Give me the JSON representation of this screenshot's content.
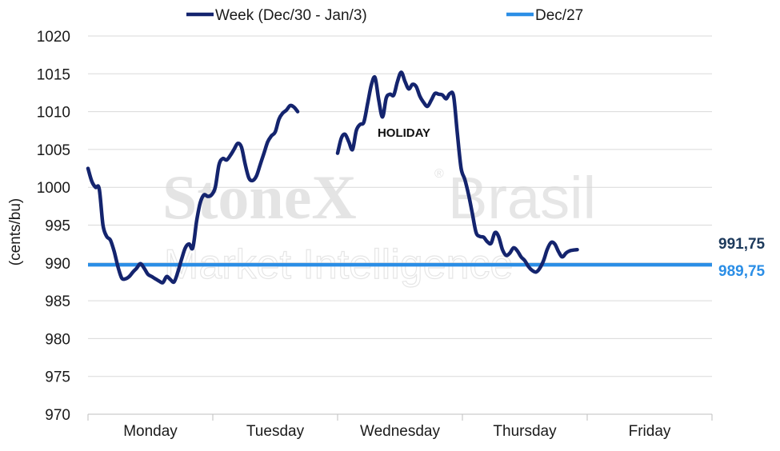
{
  "chart_data": {
    "type": "line",
    "ylabel": "(cents/bu)",
    "ylim": [
      970,
      1020
    ],
    "yticks": [
      970,
      975,
      980,
      985,
      990,
      995,
      1000,
      1005,
      1010,
      1015,
      1020
    ],
    "categories": [
      "Monday",
      "Tuesday",
      "Wednesday",
      "Thursday",
      "Friday"
    ],
    "annotation": "HOLIDAY",
    "watermark": [
      "StoneX",
      "®",
      "Brasil",
      "Market Intelligence"
    ],
    "legend_position": "top",
    "series": [
      {
        "name": "Week (Dec/30 - Jan/3)",
        "color": "#14246e",
        "end_label": "991,75",
        "end_label_color": "#1d3a5c",
        "segments": [
          [
            [
              0.0,
              1002.5
            ],
            [
              0.03,
              1000.8
            ],
            [
              0.06,
              1000.0
            ],
            [
              0.09,
              999.8
            ],
            [
              0.12,
              995.0
            ],
            [
              0.15,
              993.5
            ],
            [
              0.18,
              993.0
            ],
            [
              0.21,
              991.5
            ],
            [
              0.24,
              989.5
            ],
            [
              0.27,
              988.0
            ],
            [
              0.3,
              987.9
            ],
            [
              0.33,
              988.2
            ],
            [
              0.36,
              988.8
            ],
            [
              0.39,
              989.3
            ],
            [
              0.42,
              989.9
            ],
            [
              0.45,
              989.3
            ],
            [
              0.48,
              988.5
            ],
            [
              0.51,
              988.2
            ],
            [
              0.54,
              987.9
            ],
            [
              0.57,
              987.6
            ],
            [
              0.6,
              987.4
            ],
            [
              0.63,
              988.2
            ],
            [
              0.66,
              987.8
            ],
            [
              0.69,
              987.5
            ],
            [
              0.72,
              988.8
            ],
            [
              0.75,
              990.5
            ],
            [
              0.78,
              992.0
            ],
            [
              0.81,
              992.5
            ],
            [
              0.84,
              992.0
            ],
            [
              0.87,
              995.5
            ],
            [
              0.9,
              998.0
            ],
            [
              0.93,
              999.0
            ],
            [
              0.96,
              998.8
            ],
            [
              0.99,
              999.0
            ],
            [
              1.02,
              1000.0
            ],
            [
              1.05,
              1003.0
            ],
            [
              1.08,
              1003.8
            ],
            [
              1.11,
              1003.6
            ],
            [
              1.14,
              1004.2
            ],
            [
              1.17,
              1005.0
            ],
            [
              1.2,
              1005.8
            ],
            [
              1.23,
              1005.3
            ],
            [
              1.26,
              1003.0
            ],
            [
              1.29,
              1001.2
            ],
            [
              1.32,
              1000.9
            ],
            [
              1.35,
              1001.5
            ],
            [
              1.38,
              1003.0
            ],
            [
              1.41,
              1004.5
            ],
            [
              1.44,
              1006.0
            ],
            [
              1.47,
              1006.8
            ],
            [
              1.5,
              1007.3
            ],
            [
              1.53,
              1009.0
            ],
            [
              1.56,
              1009.8
            ],
            [
              1.59,
              1010.2
            ],
            [
              1.62,
              1010.8
            ],
            [
              1.65,
              1010.6
            ],
            [
              1.68,
              1010.0
            ]
          ],
          [
            [
              2.0,
              1004.5
            ],
            [
              2.03,
              1006.5
            ],
            [
              2.06,
              1007.0
            ],
            [
              2.09,
              1006.0
            ],
            [
              2.12,
              1005.0
            ],
            [
              2.15,
              1007.5
            ],
            [
              2.18,
              1008.3
            ],
            [
              2.21,
              1008.6
            ],
            [
              2.24,
              1011.0
            ],
            [
              2.27,
              1013.5
            ],
            [
              2.3,
              1014.5
            ],
            [
              2.33,
              1011.5
            ],
            [
              2.36,
              1009.3
            ],
            [
              2.39,
              1011.8
            ],
            [
              2.42,
              1012.3
            ],
            [
              2.45,
              1012.2
            ],
            [
              2.48,
              1014.0
            ],
            [
              2.51,
              1015.2
            ],
            [
              2.54,
              1014.0
            ],
            [
              2.57,
              1013.0
            ],
            [
              2.6,
              1013.6
            ],
            [
              2.63,
              1013.3
            ],
            [
              2.66,
              1012.0
            ],
            [
              2.69,
              1011.2
            ],
            [
              2.72,
              1010.7
            ],
            [
              2.75,
              1011.5
            ],
            [
              2.78,
              1012.4
            ],
            [
              2.81,
              1012.3
            ],
            [
              2.84,
              1012.2
            ],
            [
              2.87,
              1011.7
            ],
            [
              2.9,
              1012.4
            ],
            [
              2.93,
              1012.0
            ],
            [
              2.96,
              1007.0
            ],
            [
              2.99,
              1002.5
            ],
            [
              3.02,
              1001.0
            ],
            [
              3.05,
              999.0
            ],
            [
              3.08,
              996.5
            ],
            [
              3.11,
              994.0
            ],
            [
              3.14,
              993.5
            ],
            [
              3.17,
              993.4
            ],
            [
              3.2,
              992.8
            ],
            [
              3.23,
              992.6
            ],
            [
              3.26,
              994.0
            ],
            [
              3.29,
              993.5
            ],
            [
              3.32,
              991.8
            ],
            [
              3.35,
              991.0
            ],
            [
              3.38,
              991.3
            ],
            [
              3.41,
              992.0
            ],
            [
              3.44,
              991.6
            ],
            [
              3.47,
              990.8
            ],
            [
              3.5,
              990.3
            ],
            [
              3.53,
              989.5
            ],
            [
              3.56,
              989.0
            ],
            [
              3.59,
              988.8
            ],
            [
              3.62,
              989.3
            ],
            [
              3.65,
              990.3
            ],
            [
              3.68,
              991.8
            ],
            [
              3.71,
              992.7
            ],
            [
              3.74,
              992.5
            ],
            [
              3.77,
              991.5
            ],
            [
              3.8,
              990.8
            ],
            [
              3.83,
              991.3
            ],
            [
              3.86,
              991.6
            ],
            [
              3.89,
              991.7
            ],
            [
              3.92,
              991.75
            ]
          ]
        ]
      },
      {
        "name": "Dec/27",
        "color": "#2b8ee6",
        "value": 989.75,
        "end_label": "989,75",
        "end_label_color": "#2b8ee6"
      }
    ]
  }
}
